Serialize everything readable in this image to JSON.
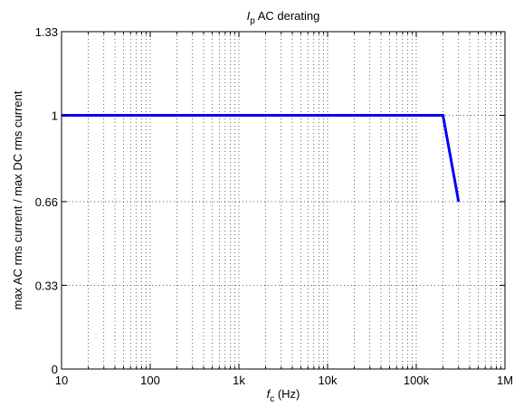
{
  "chart_data": {
    "type": "line",
    "title": {
      "symbol": "I",
      "subscript": "p",
      "rest": " AC derating"
    },
    "xlabel": {
      "symbol": "f",
      "subscript": "c",
      "rest": " (Hz)"
    },
    "ylabel": "max AC rms current / max DC rms current",
    "x_scale": "log",
    "xlim": [
      10,
      1000000
    ],
    "ylim": [
      0,
      1.33
    ],
    "x_ticks": [
      10,
      100,
      1000,
      10000,
      100000,
      1000000
    ],
    "x_tick_labels": [
      "10",
      "100",
      "1k",
      "10k",
      "100k",
      "1M"
    ],
    "y_ticks": [
      0,
      0.33,
      0.66,
      1,
      1.33
    ],
    "y_tick_labels": [
      "0",
      "0.33",
      "0.66",
      "1",
      "1.33"
    ],
    "grid": true,
    "minor_grid": true,
    "series": [
      {
        "color": "#0000ff",
        "x": [
          10,
          200000,
          300000
        ],
        "y": [
          1,
          1,
          0.66
        ]
      }
    ]
  }
}
